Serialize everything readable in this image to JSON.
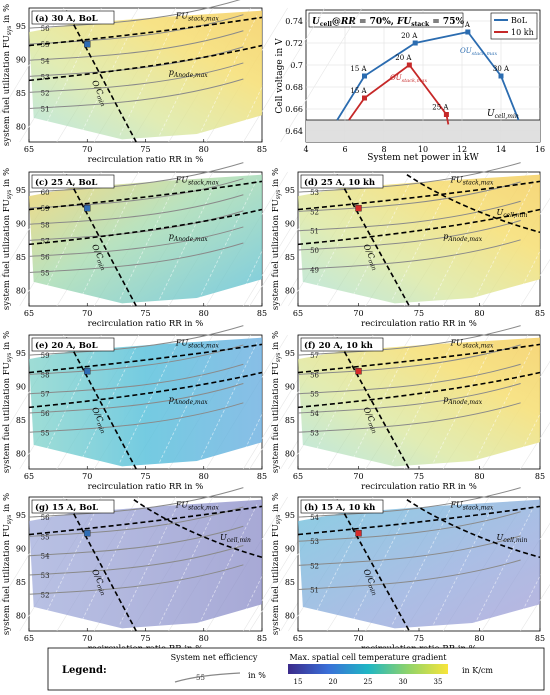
{
  "common": {
    "x_tick_labels": [
      "65",
      "70",
      "75",
      "80",
      "85"
    ],
    "x_label": "recirculation ratio RR in %",
    "y_tick_labels": [
      "80",
      "85",
      "90",
      "95"
    ],
    "y_label": "system fuel utilization FU",
    "y_label_sub": "sys",
    "y_label_suffix": " in %",
    "lbl_fu_stack": "FU",
    "lbl_fu_stack_sub": "stack,max",
    "lbl_p_anode": "p",
    "lbl_p_anode_sub": "Anode,max",
    "lbl_u_cell": "U",
    "lbl_u_cell_sub": "cell,min",
    "lbl_oc": "O/C",
    "lbl_oc_sub": "min"
  },
  "panels": [
    {
      "key": "a",
      "title": "(a) 30 A, BoL",
      "marker": "#2f6db5",
      "theme": "warm",
      "sfu": true,
      "spa": true,
      "suc": false,
      "labels": [
        "56",
        "55",
        "54",
        "53",
        "52",
        "51"
      ]
    },
    {
      "key": "c",
      "title": "(c) 25 A, BoL",
      "marker": "#2f6db5",
      "theme": "mixed",
      "sfu": true,
      "spa": true,
      "suc": false,
      "labels": [
        "60",
        "59",
        "58",
        "57",
        "56",
        "55"
      ]
    },
    {
      "key": "d",
      "title": "(d) 25 A, 10 kh",
      "marker": "#d62a2a",
      "theme": "warm",
      "sfu": true,
      "spa": true,
      "suc": true,
      "labels": [
        "53",
        "52",
        "51",
        "50",
        "49"
      ]
    },
    {
      "key": "e",
      "title": "(e) 20 A, BoL",
      "marker": "#2f6db5",
      "theme": "cool",
      "sfu": true,
      "spa": true,
      "suc": false,
      "labels": [
        "59",
        "58",
        "57",
        "56",
        "55"
      ]
    },
    {
      "key": "f",
      "title": "(f) 20 A, 10 kh",
      "marker": "#d62a2a",
      "theme": "warm",
      "sfu": true,
      "spa": true,
      "suc": false,
      "labels": [
        "57",
        "56",
        "55",
        "54",
        "53"
      ]
    },
    {
      "key": "g",
      "title": "(g) 15 A, BoL",
      "marker": "#2f6db5",
      "theme": "purple",
      "sfu": true,
      "spa": false,
      "suc": true,
      "labels": [
        "56",
        "55",
        "54",
        "53",
        "52"
      ]
    },
    {
      "key": "h",
      "title": "(h) 15 A, 10 kh",
      "marker": "#d62a2a",
      "theme": "blue",
      "sfu": true,
      "spa": false,
      "suc": true,
      "labels": [
        "54",
        "53",
        "52",
        "51"
      ]
    }
  ],
  "panel_b": {
    "title_parts": {
      "u": "U",
      "u_sub": "cell",
      "at": "@",
      "rr": "RR",
      "eq1": " = 70%, ",
      "fu": "FU",
      "fu_sub": "stack",
      "eq2": " = 75%"
    },
    "x_tick_labels": [
      "4",
      "6",
      "8",
      "10",
      "12",
      "14",
      "16"
    ],
    "x_label": "System net power in kW",
    "y_tick_labels": [
      "0.64",
      "0.66",
      "0.68",
      "0.7",
      "0.72",
      "0.74"
    ],
    "y_label": "Cell voltage in V",
    "ucell_min_label": "U",
    "ucell_min_sub": "cell,min",
    "ou_label": "OU",
    "ou_sub": "stack,max",
    "point_labels": [
      "15 A",
      "20 A",
      "25 A",
      "30 A",
      "15 A",
      "20 A",
      "25 A"
    ],
    "legend": [
      "BoL",
      "10 kh"
    ]
  },
  "chart_data": {
    "type": "line",
    "title": "U_cell@RR = 70%, FU_stack = 75%",
    "xlabel": "System net power in kW",
    "ylabel": "Cell voltage in V",
    "xlim": [
      4,
      16
    ],
    "ylim": [
      0.63,
      0.75
    ],
    "ucell_min": 0.65,
    "series": [
      {
        "name": "BoL",
        "color": "#2b6cb0",
        "points": [
          {
            "x": 7.0,
            "y": 0.69,
            "label": "15 A"
          },
          {
            "x": 9.6,
            "y": 0.72,
            "label": "20 A"
          },
          {
            "x": 12.3,
            "y": 0.73,
            "label": "25 A"
          },
          {
            "x": 14.0,
            "y": 0.69,
            "label": "30 A"
          }
        ]
      },
      {
        "name": "10 kh",
        "color": "#c62828",
        "points": [
          {
            "x": 7.0,
            "y": 0.67,
            "label": "15 A"
          },
          {
            "x": 9.3,
            "y": 0.7,
            "label": "20 A"
          },
          {
            "x": 11.2,
            "y": 0.655,
            "label": "25 A"
          }
        ]
      }
    ]
  },
  "legend": {
    "title": "Legend:",
    "efficiency_label": "System net efficiency",
    "efficiency_sample": "55",
    "efficiency_unit": "in %",
    "gradient_title": "Max. spatial cell temperature gradient",
    "gradient_ticks": [
      "15",
      "20",
      "25",
      "30",
      "35"
    ],
    "gradient_unit": "in K/cm"
  }
}
